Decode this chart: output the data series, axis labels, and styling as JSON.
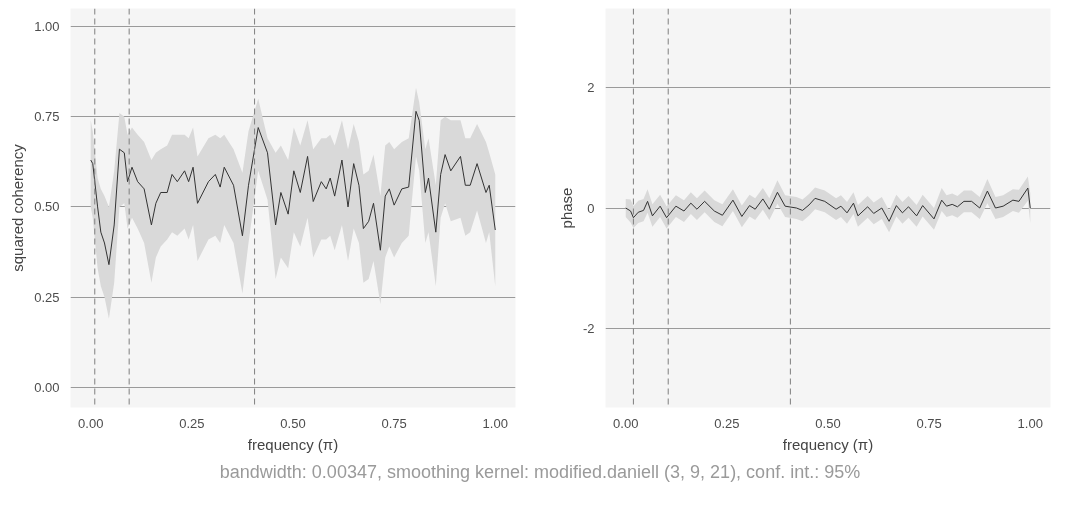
{
  "chart_data": [
    {
      "type": "line",
      "xlabel": "frequency (π)",
      "ylabel": "squared coherency",
      "xlim": [
        -0.05,
        1.05
      ],
      "ylim": [
        -0.056,
        1.05
      ],
      "xticks": [
        {
          "value": 0,
          "label": "0.00"
        },
        {
          "value": 0.25,
          "label": "0.25"
        },
        {
          "value": 0.5,
          "label": "0.50"
        },
        {
          "value": 0.75,
          "label": "0.75"
        },
        {
          "value": 1,
          "label": "1.00"
        }
      ],
      "yticks": [
        {
          "value": 0,
          "label": "0.00"
        },
        {
          "value": 0.25,
          "label": "0.25"
        },
        {
          "value": 0.5,
          "label": "0.50"
        },
        {
          "value": 0.75,
          "label": "0.75"
        },
        {
          "value": 1,
          "label": "1.00"
        }
      ],
      "grid": "y",
      "line_style": "solid",
      "marker": "none",
      "ref_lines": [
        {
          "axis": "x",
          "value": 0.01,
          "label": null,
          "color": "#7f7f7f",
          "line_style": "dashed"
        },
        {
          "axis": "x",
          "value": 0.095,
          "label": null,
          "color": "#7f7f7f",
          "line_style": "dashed"
        },
        {
          "axis": "x",
          "value": 0.405,
          "label": null,
          "color": "#7f7f7f",
          "line_style": "dashed"
        }
      ],
      "series": [
        {
          "color": "#333333",
          "x": [
            0,
            0.005,
            0.017,
            0.025,
            0.034,
            0.045,
            0.058,
            0.071,
            0.083,
            0.091,
            0.102,
            0.116,
            0.132,
            0.15,
            0.161,
            0.173,
            0.189,
            0.201,
            0.214,
            0.232,
            0.242,
            0.253,
            0.264,
            0.291,
            0.308,
            0.32,
            0.33,
            0.353,
            0.375,
            0.39,
            0.414,
            0.437,
            0.457,
            0.47,
            0.488,
            0.502,
            0.518,
            0.536,
            0.55,
            0.57,
            0.582,
            0.592,
            0.603,
            0.621,
            0.636,
            0.65,
            0.663,
            0.674,
            0.687,
            0.699,
            0.716,
            0.728,
            0.738,
            0.75,
            0.769,
            0.786,
            0.804,
            0.812,
            0.827,
            0.835,
            0.853,
            0.865,
            0.876,
            0.89,
            0.914,
            0.926,
            0.938,
            0.955,
            0.977,
            0.985,
            1.0
          ],
          "values": [
            0.63,
            0.62,
            0.5,
            0.43,
            0.4,
            0.34,
            0.45,
            0.66,
            0.65,
            0.57,
            0.61,
            0.57,
            0.55,
            0.45,
            0.51,
            0.54,
            0.54,
            0.59,
            0.57,
            0.6,
            0.57,
            0.61,
            0.51,
            0.57,
            0.59,
            0.555,
            0.61,
            0.56,
            0.42,
            0.56,
            0.72,
            0.65,
            0.45,
            0.54,
            0.48,
            0.6,
            0.54,
            0.64,
            0.515,
            0.57,
            0.55,
            0.58,
            0.53,
            0.63,
            0.5,
            0.62,
            0.56,
            0.44,
            0.46,
            0.51,
            0.38,
            0.53,
            0.55,
            0.505,
            0.55,
            0.555,
            0.765,
            0.74,
            0.54,
            0.58,
            0.43,
            0.59,
            0.645,
            0.6,
            0.64,
            0.56,
            0.56,
            0.62,
            0.54,
            0.56,
            0.436
          ],
          "upper": [
            0.74,
            0.71,
            0.58,
            0.55,
            0.53,
            0.5,
            0.6,
            0.76,
            0.75,
            0.7,
            0.72,
            0.7,
            0.68,
            0.63,
            0.65,
            0.66,
            0.67,
            0.7,
            0.7,
            0.7,
            0.69,
            0.72,
            0.64,
            0.69,
            0.7,
            0.69,
            0.7,
            0.66,
            0.595,
            0.71,
            0.8,
            0.69,
            0.65,
            0.67,
            0.63,
            0.72,
            0.67,
            0.74,
            0.66,
            0.69,
            0.69,
            0.7,
            0.67,
            0.74,
            0.66,
            0.73,
            0.68,
            0.59,
            0.6,
            0.645,
            0.53,
            0.67,
            0.68,
            0.66,
            0.68,
            0.69,
            0.83,
            0.79,
            0.66,
            0.69,
            0.56,
            0.74,
            0.75,
            0.74,
            0.74,
            0.69,
            0.69,
            0.73,
            0.68,
            0.65,
            0.59
          ],
          "lower": [
            0.5,
            0.47,
            0.33,
            0.28,
            0.25,
            0.19,
            0.29,
            0.5,
            0.51,
            0.44,
            0.47,
            0.44,
            0.4,
            0.29,
            0.36,
            0.39,
            0.41,
            0.43,
            0.42,
            0.44,
            0.41,
            0.45,
            0.35,
            0.41,
            0.42,
            0.4,
            0.45,
            0.4,
            0.26,
            0.4,
            0.6,
            0.52,
            0.3,
            0.36,
            0.33,
            0.43,
            0.39,
            0.47,
            0.36,
            0.41,
            0.41,
            0.42,
            0.38,
            0.45,
            0.35,
            0.44,
            0.4,
            0.29,
            0.3,
            0.35,
            0.23,
            0.36,
            0.39,
            0.36,
            0.4,
            0.42,
            0.64,
            0.6,
            0.4,
            0.43,
            0.28,
            0.47,
            0.51,
            0.46,
            0.47,
            0.42,
            0.43,
            0.49,
            0.4,
            0.43,
            0.28
          ]
        }
      ],
      "annotations": [
        "bandwidth: 0.00347, smoothing kernel: modified.daniell (3, 9, 21), conf. int.: 95%"
      ]
    },
    {
      "type": "line",
      "xlabel": "frequency (π)",
      "ylabel": "phase",
      "xlim": [
        -0.05,
        1.05
      ],
      "ylim": [
        -3.3,
        3.3
      ],
      "xticks": [
        {
          "value": 0,
          "label": "0.00"
        },
        {
          "value": 0.25,
          "label": "0.25"
        },
        {
          "value": 0.5,
          "label": "0.50"
        },
        {
          "value": 0.75,
          "label": "0.75"
        },
        {
          "value": 1,
          "label": "1.00"
        }
      ],
      "yticks": [
        -2,
        0,
        2
      ],
      "grid": "y",
      "line_style": "solid",
      "marker": "none",
      "ref_lines": [
        {
          "axis": "x",
          "value": 0.019,
          "label": null,
          "color": "#7f7f7f",
          "line_style": "dashed"
        },
        {
          "axis": "x",
          "value": 0.105,
          "label": null,
          "color": "#7f7f7f",
          "line_style": "dashed"
        },
        {
          "axis": "x",
          "value": 0.407,
          "label": null,
          "color": "#7f7f7f",
          "line_style": "dashed"
        }
      ],
      "series": [
        {
          "color": "#333333",
          "x": [
            0.0,
            0.012,
            0.019,
            0.031,
            0.044,
            0.054,
            0.066,
            0.085,
            0.101,
            0.124,
            0.144,
            0.161,
            0.176,
            0.195,
            0.219,
            0.239,
            0.265,
            0.287,
            0.306,
            0.32,
            0.339,
            0.355,
            0.375,
            0.394,
            0.422,
            0.437,
            0.453,
            0.468,
            0.492,
            0.52,
            0.532,
            0.547,
            0.563,
            0.574,
            0.598,
            0.613,
            0.633,
            0.651,
            0.669,
            0.684,
            0.699,
            0.719,
            0.734,
            0.762,
            0.781,
            0.793,
            0.807,
            0.82,
            0.836,
            0.855,
            0.875,
            0.894,
            0.914,
            0.933,
            0.957,
            0.972,
            0.994,
            1.0
          ],
          "values": [
            0.0,
            -0.05,
            -0.16,
            -0.07,
            -0.04,
            0.11,
            -0.13,
            0.03,
            -0.16,
            0.03,
            -0.05,
            0.08,
            -0.02,
            0.11,
            -0.05,
            -0.12,
            0.13,
            -0.14,
            0.04,
            -0.02,
            0.15,
            -0.02,
            0.26,
            0.03,
            0.0,
            -0.04,
            0.05,
            0.16,
            0.11,
            -0.02,
            0.03,
            -0.08,
            0.08,
            -0.13,
            0.02,
            -0.09,
            0.0,
            -0.22,
            0.04,
            -0.08,
            0.02,
            -0.13,
            0.04,
            -0.18,
            0.13,
            0.03,
            0.06,
            0.02,
            0.11,
            0.11,
            0.0,
            0.28,
            0.0,
            0.03,
            0.13,
            0.11,
            0.33,
            0.0
          ],
          "upper": [
            0.15,
            0.14,
            0.03,
            0.12,
            0.15,
            0.31,
            0.06,
            0.22,
            0.03,
            0.21,
            0.13,
            0.26,
            0.16,
            0.29,
            0.13,
            0.06,
            0.31,
            0.04,
            0.22,
            0.16,
            0.33,
            0.16,
            0.46,
            0.21,
            0.18,
            0.14,
            0.23,
            0.34,
            0.29,
            0.16,
            0.21,
            0.1,
            0.26,
            0.05,
            0.2,
            0.09,
            0.18,
            -0.04,
            0.22,
            0.1,
            0.2,
            0.05,
            0.22,
            0.0,
            0.33,
            0.21,
            0.24,
            0.2,
            0.29,
            0.29,
            0.18,
            0.48,
            0.18,
            0.21,
            0.31,
            0.3,
            0.52,
            0.25
          ],
          "lower": [
            -0.15,
            -0.24,
            -0.33,
            -0.25,
            -0.22,
            -0.08,
            -0.31,
            -0.15,
            -0.34,
            -0.15,
            -0.23,
            -0.1,
            -0.2,
            -0.07,
            -0.23,
            -0.3,
            -0.05,
            -0.32,
            -0.14,
            -0.2,
            -0.03,
            -0.2,
            0.07,
            -0.15,
            -0.18,
            -0.22,
            -0.13,
            -0.02,
            -0.07,
            -0.2,
            -0.15,
            -0.26,
            -0.1,
            -0.31,
            -0.16,
            -0.27,
            -0.18,
            -0.4,
            -0.14,
            -0.26,
            -0.16,
            -0.31,
            -0.14,
            -0.36,
            -0.05,
            -0.15,
            -0.12,
            -0.16,
            -0.07,
            -0.07,
            -0.18,
            0.08,
            -0.18,
            -0.15,
            -0.05,
            -0.08,
            0.12,
            -0.25
          ]
        }
      ]
    }
  ]
}
